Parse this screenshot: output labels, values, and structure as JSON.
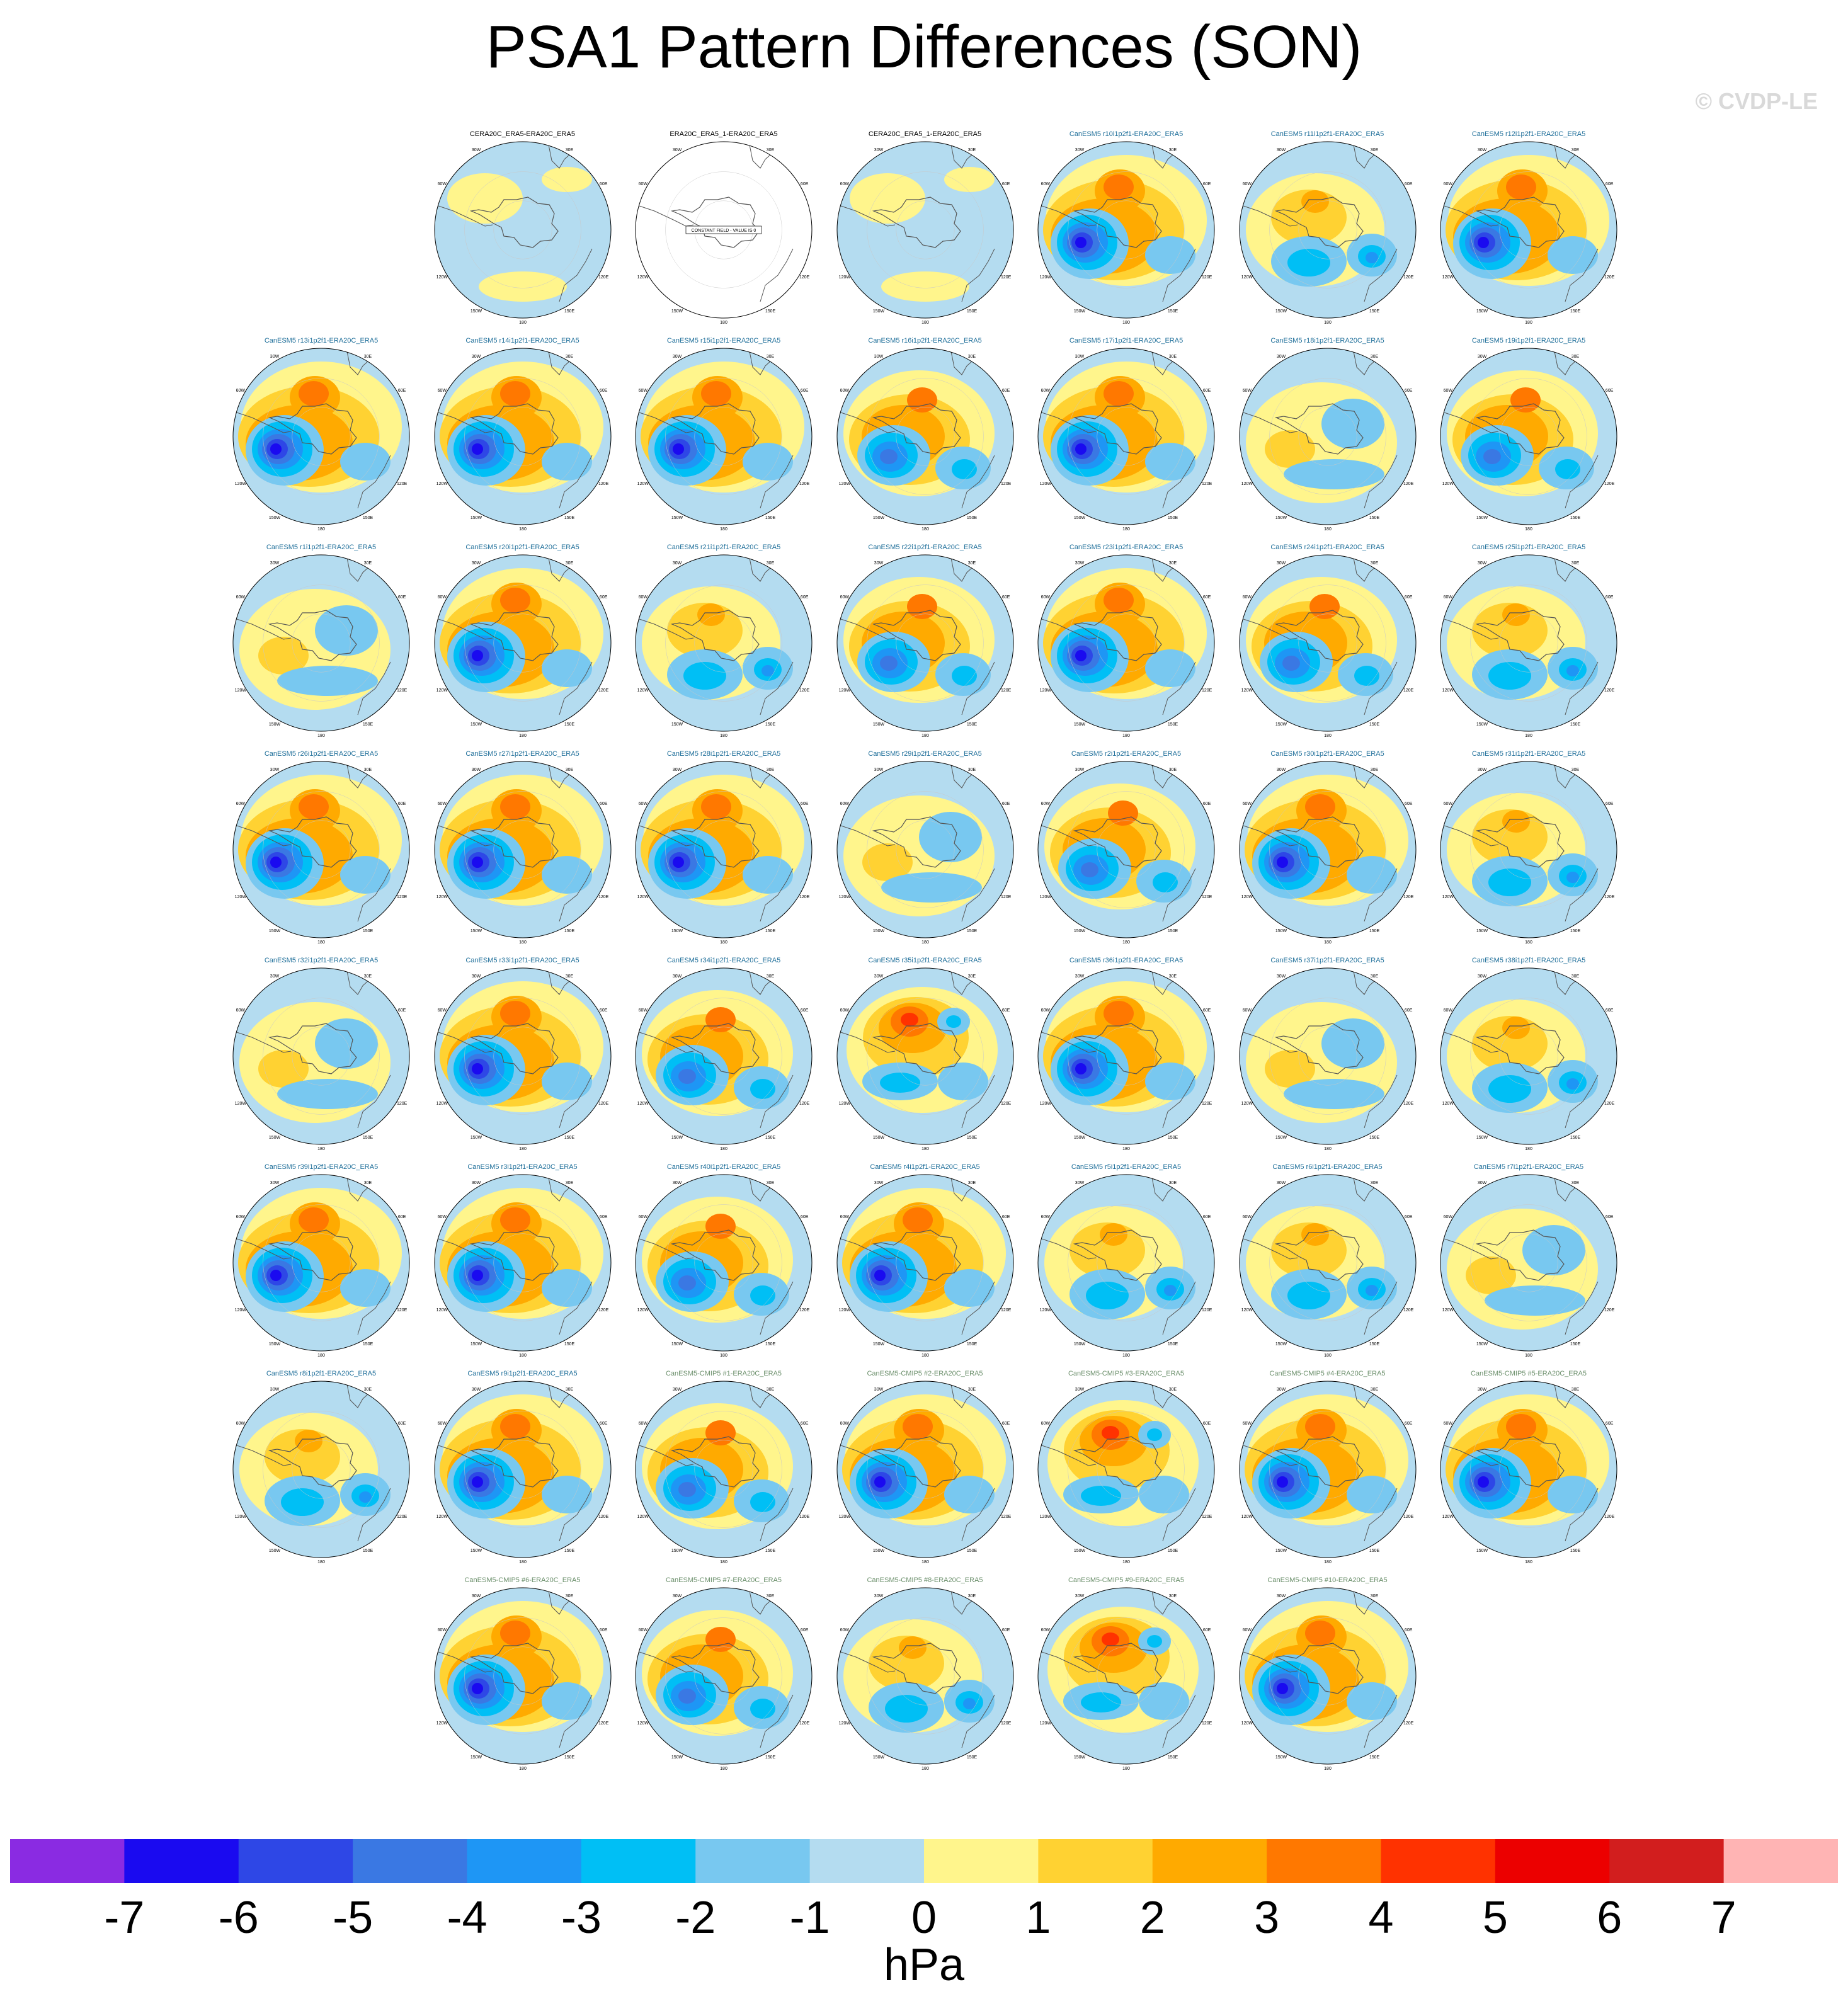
{
  "title": "PSA1 Pattern Differences (SON)",
  "credit": "© CVDP-LE",
  "colors": {
    "land_outline": "#555555",
    "grid": "#c8c8c8",
    "frame": "#000000",
    "title_obs": "#000000",
    "title_member": "#1f6f9a",
    "title_cmip": "#6b8f6b"
  },
  "colorbar": {
    "units": "hPa",
    "labels": [
      "-7",
      "-6",
      "-5",
      "-4",
      "-3",
      "-2",
      "-1",
      "0",
      "1",
      "2",
      "3",
      "4",
      "5",
      "6",
      "7"
    ],
    "colors": [
      "#8a2be2",
      "#1a0af0",
      "#2e47e6",
      "#3a78e3",
      "#1e96f5",
      "#00bff5",
      "#78c8f0",
      "#b4dcf0",
      "#fff58c",
      "#ffd232",
      "#ffaa00",
      "#ff7800",
      "#ff3200",
      "#ec0000",
      "#d21e1e",
      "#ffb4b4"
    ]
  },
  "map_labels": {
    "top": "0",
    "r30": "30E",
    "r60": "60E",
    "right": "90E",
    "r120": "120E",
    "r150": "150E",
    "bottom": "180",
    "l150": "150W",
    "l120": "120W",
    "left": "90W",
    "l60": "60W",
    "l30": "30W"
  },
  "constant_field_label": "CONSTANT FIELD - VALUE IS 0",
  "panels": [
    {
      "title": "CERA20C_ERA5-ERA20C_ERA5",
      "kind": "obs",
      "style": "mixed",
      "row": 0,
      "col": 1
    },
    {
      "title": "ERA20C_ERA5_1-ERA20C_ERA5",
      "kind": "obs",
      "style": "constant",
      "row": 0,
      "col": 2
    },
    {
      "title": "CERA20C_ERA5_1-ERA20C_ERA5",
      "kind": "obs",
      "style": "mixed",
      "row": 0,
      "col": 3
    },
    {
      "title": "CanESM5 r10i1p2f1-ERA20C_ERA5",
      "kind": "member",
      "style": "strong",
      "row": 0,
      "col": 4
    },
    {
      "title": "CanESM5 r11i1p2f1-ERA20C_ERA5",
      "kind": "member",
      "style": "weak",
      "row": 0,
      "col": 5
    },
    {
      "title": "CanESM5 r12i1p2f1-ERA20C_ERA5",
      "kind": "member",
      "style": "strong",
      "row": 0,
      "col": 6
    },
    {
      "title": "CanESM5 r13i1p2f1-ERA20C_ERA5",
      "kind": "member",
      "style": "strong",
      "row": 1,
      "col": 0
    },
    {
      "title": "CanESM5 r14i1p2f1-ERA20C_ERA5",
      "kind": "member",
      "style": "strong",
      "row": 1,
      "col": 1
    },
    {
      "title": "CanESM5 r15i1p2f1-ERA20C_ERA5",
      "kind": "member",
      "style": "strong",
      "row": 1,
      "col": 2
    },
    {
      "title": "CanESM5 r16i1p2f1-ERA20C_ERA5",
      "kind": "member",
      "style": "medium",
      "row": 1,
      "col": 3
    },
    {
      "title": "CanESM5 r17i1p2f1-ERA20C_ERA5",
      "kind": "member",
      "style": "strong",
      "row": 1,
      "col": 4
    },
    {
      "title": "CanESM5 r18i1p2f1-ERA20C_ERA5",
      "kind": "member",
      "style": "faint",
      "row": 1,
      "col": 5
    },
    {
      "title": "CanESM5 r19i1p2f1-ERA20C_ERA5",
      "kind": "member",
      "style": "medium",
      "row": 1,
      "col": 6
    },
    {
      "title": "CanESM5 r1i1p2f1-ERA20C_ERA5",
      "kind": "member",
      "style": "faint",
      "row": 2,
      "col": 0
    },
    {
      "title": "CanESM5 r20i1p2f1-ERA20C_ERA5",
      "kind": "member",
      "style": "strong",
      "row": 2,
      "col": 1
    },
    {
      "title": "CanESM5 r21i1p2f1-ERA20C_ERA5",
      "kind": "member",
      "style": "weak",
      "row": 2,
      "col": 2
    },
    {
      "title": "CanESM5 r22i1p2f1-ERA20C_ERA5",
      "kind": "member",
      "style": "medium",
      "row": 2,
      "col": 3
    },
    {
      "title": "CanESM5 r23i1p2f1-ERA20C_ERA5",
      "kind": "member",
      "style": "strong",
      "row": 2,
      "col": 4
    },
    {
      "title": "CanESM5 r24i1p2f1-ERA20C_ERA5",
      "kind": "member",
      "style": "medium",
      "row": 2,
      "col": 5
    },
    {
      "title": "CanESM5 r25i1p2f1-ERA20C_ERA5",
      "kind": "member",
      "style": "weak",
      "row": 2,
      "col": 6
    },
    {
      "title": "CanESM5 r26i1p2f1-ERA20C_ERA5",
      "kind": "member",
      "style": "strong",
      "row": 3,
      "col": 0
    },
    {
      "title": "CanESM5 r27i1p2f1-ERA20C_ERA5",
      "kind": "member",
      "style": "strong",
      "row": 3,
      "col": 1
    },
    {
      "title": "CanESM5 r28i1p2f1-ERA20C_ERA5",
      "kind": "member",
      "style": "strong",
      "row": 3,
      "col": 2
    },
    {
      "title": "CanESM5 r29i1p2f1-ERA20C_ERA5",
      "kind": "member",
      "style": "faint",
      "row": 3,
      "col": 3
    },
    {
      "title": "CanESM5 r2i1p2f1-ERA20C_ERA5",
      "kind": "member",
      "style": "medium",
      "row": 3,
      "col": 4
    },
    {
      "title": "CanESM5 r30i1p2f1-ERA20C_ERA5",
      "kind": "member",
      "style": "strong",
      "row": 3,
      "col": 5
    },
    {
      "title": "CanESM5 r31i1p2f1-ERA20C_ERA5",
      "kind": "member",
      "style": "weak",
      "row": 3,
      "col": 6
    },
    {
      "title": "CanESM5 r32i1p2f1-ERA20C_ERA5",
      "kind": "member",
      "style": "faint",
      "row": 4,
      "col": 0
    },
    {
      "title": "CanESM5 r33i1p2f1-ERA20C_ERA5",
      "kind": "member",
      "style": "strong",
      "row": 4,
      "col": 1
    },
    {
      "title": "CanESM5 r34i1p2f1-ERA20C_ERA5",
      "kind": "member",
      "style": "medium",
      "row": 4,
      "col": 2
    },
    {
      "title": "CanESM5 r35i1p2f1-ERA20C_ERA5",
      "kind": "member",
      "style": "positive",
      "row": 4,
      "col": 3
    },
    {
      "title": "CanESM5 r36i1p2f1-ERA20C_ERA5",
      "kind": "member",
      "style": "strong",
      "row": 4,
      "col": 4
    },
    {
      "title": "CanESM5 r37i1p2f1-ERA20C_ERA5",
      "kind": "member",
      "style": "faint",
      "row": 4,
      "col": 5
    },
    {
      "title": "CanESM5 r38i1p2f1-ERA20C_ERA5",
      "kind": "member",
      "style": "weak",
      "row": 4,
      "col": 6
    },
    {
      "title": "CanESM5 r39i1p2f1-ERA20C_ERA5",
      "kind": "member",
      "style": "strong",
      "row": 5,
      "col": 0
    },
    {
      "title": "CanESM5 r3i1p2f1-ERA20C_ERA5",
      "kind": "member",
      "style": "strong",
      "row": 5,
      "col": 1
    },
    {
      "title": "CanESM5 r40i1p2f1-ERA20C_ERA5",
      "kind": "member",
      "style": "medium",
      "row": 5,
      "col": 2
    },
    {
      "title": "CanESM5 r4i1p2f1-ERA20C_ERA5",
      "kind": "member",
      "style": "strong",
      "row": 5,
      "col": 3
    },
    {
      "title": "CanESM5 r5i1p2f1-ERA20C_ERA5",
      "kind": "member",
      "style": "weak",
      "row": 5,
      "col": 4
    },
    {
      "title": "CanESM5 r6i1p2f1-ERA20C_ERA5",
      "kind": "member",
      "style": "weak",
      "row": 5,
      "col": 5
    },
    {
      "title": "CanESM5 r7i1p2f1-ERA20C_ERA5",
      "kind": "member",
      "style": "faint",
      "row": 5,
      "col": 6
    },
    {
      "title": "CanESM5 r8i1p2f1-ERA20C_ERA5",
      "kind": "member",
      "style": "weak",
      "row": 6,
      "col": 0
    },
    {
      "title": "CanESM5 r9i1p2f1-ERA20C_ERA5",
      "kind": "member",
      "style": "strong",
      "row": 6,
      "col": 1
    },
    {
      "title": "CanESM5-CMIP5 #1-ERA20C_ERA5",
      "kind": "cmip",
      "style": "medium",
      "row": 6,
      "col": 2
    },
    {
      "title": "CanESM5-CMIP5 #2-ERA20C_ERA5",
      "kind": "cmip",
      "style": "strong",
      "row": 6,
      "col": 3
    },
    {
      "title": "CanESM5-CMIP5 #3-ERA20C_ERA5",
      "kind": "cmip",
      "style": "positive",
      "row": 6,
      "col": 4
    },
    {
      "title": "CanESM5-CMIP5 #4-ERA20C_ERA5",
      "kind": "cmip",
      "style": "strong",
      "row": 6,
      "col": 5
    },
    {
      "title": "CanESM5-CMIP5 #5-ERA20C_ERA5",
      "kind": "cmip",
      "style": "strong",
      "row": 6,
      "col": 6
    },
    {
      "title": "CanESM5-CMIP5 #6-ERA20C_ERA5",
      "kind": "cmip",
      "style": "strong",
      "row": 7,
      "col": 1
    },
    {
      "title": "CanESM5-CMIP5 #7-ERA20C_ERA5",
      "kind": "cmip",
      "style": "medium",
      "row": 7,
      "col": 2
    },
    {
      "title": "CanESM5-CMIP5 #8-ERA20C_ERA5",
      "kind": "cmip",
      "style": "weak",
      "row": 7,
      "col": 3
    },
    {
      "title": "CanESM5-CMIP5 #9-ERA20C_ERA5",
      "kind": "cmip",
      "style": "positive",
      "row": 7,
      "col": 4
    },
    {
      "title": "CanESM5-CMIP5 #10-ERA20C_ERA5",
      "kind": "cmip",
      "style": "strong",
      "row": 7,
      "col": 5
    }
  ]
}
